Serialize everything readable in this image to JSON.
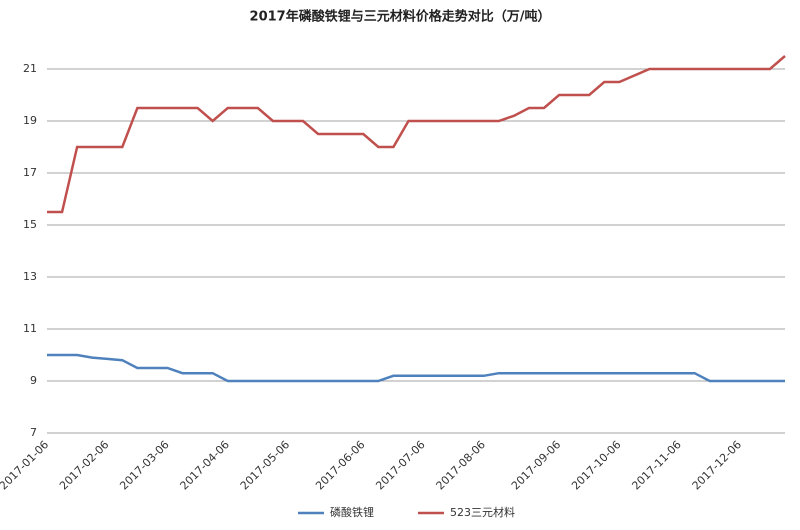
{
  "chart_data": {
    "type": "line",
    "title": "2017年磷酸铁锂与三元材料价格走势对比（万/吨）",
    "categories": [
      "2017-01-06",
      null,
      null,
      null,
      "2017-02-06",
      null,
      null,
      null,
      "2017-03-06",
      null,
      null,
      null,
      "2017-04-06",
      null,
      null,
      null,
      "2017-05-06",
      null,
      null,
      null,
      null,
      "2017-06-06",
      null,
      null,
      null,
      "2017-07-06",
      null,
      null,
      null,
      "2017-08-06",
      null,
      null,
      null,
      null,
      "2017-09-06",
      null,
      null,
      null,
      "2017-10-06",
      null,
      null,
      null,
      "2017-11-06",
      null,
      null,
      null,
      "2017-12-06",
      null,
      null,
      null
    ],
    "series": [
      {
        "name": "磷酸铁锂",
        "color": "#4f81bd",
        "values": [
          10,
          10,
          10,
          9.9,
          9.85,
          9.8,
          9.5,
          9.5,
          9.5,
          9.3,
          9.3,
          9.3,
          9,
          9,
          9,
          9,
          9,
          9,
          9,
          9,
          9,
          9,
          9,
          9.2,
          9.2,
          9.2,
          9.2,
          9.2,
          9.2,
          9.2,
          9.3,
          9.3,
          9.3,
          9.3,
          9.3,
          9.3,
          9.3,
          9.3,
          9.3,
          9.3,
          9.3,
          9.3,
          9.3,
          9.3,
          9,
          9,
          9,
          9,
          9,
          9
        ]
      },
      {
        "name": "523三元材料",
        "color": "#c0504d",
        "values": [
          15.5,
          15.5,
          18,
          18,
          18,
          18,
          19.5,
          19.5,
          19.5,
          19.5,
          19.5,
          19,
          19.5,
          19.5,
          19.5,
          19,
          19,
          19,
          18.5,
          18.5,
          18.5,
          18.5,
          18,
          18,
          19,
          19,
          19,
          19,
          19,
          19,
          19,
          19.2,
          19.5,
          19.5,
          20,
          20,
          20,
          20.5,
          20.5,
          20.75,
          21,
          21,
          21,
          21,
          21,
          21,
          21,
          21,
          21,
          21.5
        ]
      }
    ],
    "ylim": [
      7,
      22
    ],
    "yticks": [
      7,
      9,
      11,
      13,
      15,
      17,
      19,
      21
    ],
    "grid": true,
    "legend": "bottom"
  }
}
